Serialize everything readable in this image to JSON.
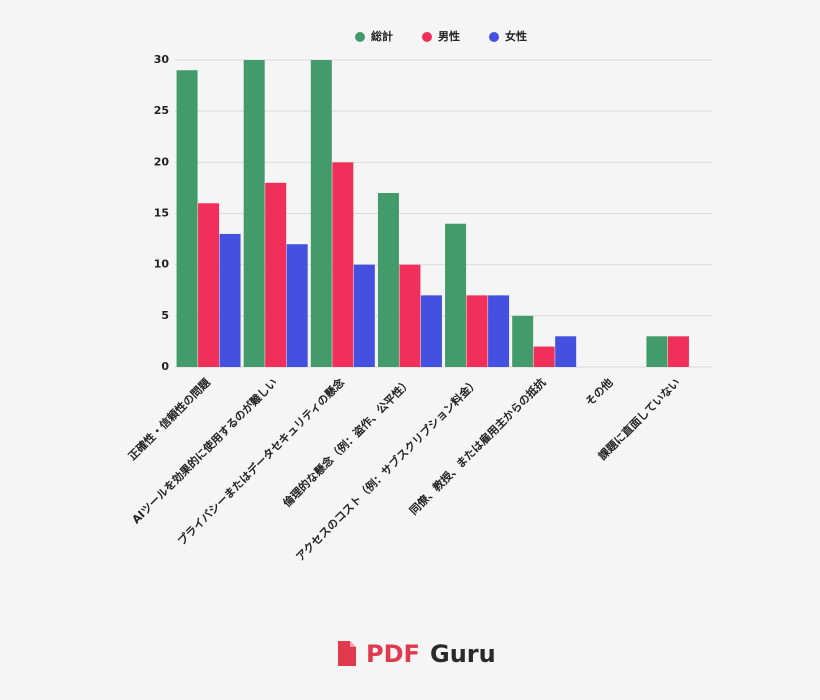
{
  "chart_data": {
    "type": "bar",
    "categories": [
      "正確性・信頼性の問題",
      "AIツールを効果的に使用するのが難しい",
      "プライバシーまたはデータセキュリティの懸念",
      "倫理的な懸念（例：盗作、公平性）",
      "アクセスのコスト（例：サブスクリプション料金）",
      "同僚、教授、または雇用主からの抵抗",
      "その他",
      "課題に直面していない"
    ],
    "series": [
      {
        "name": "総計",
        "color": "#439a6b",
        "values": [
          29,
          30,
          30,
          17,
          14,
          5,
          0,
          3
        ]
      },
      {
        "name": "男性",
        "color": "#f0305a",
        "values": [
          16,
          18,
          20,
          10,
          7,
          2,
          0,
          3
        ]
      },
      {
        "name": "女性",
        "color": "#4450e0",
        "values": [
          13,
          12,
          10,
          7,
          7,
          3,
          0,
          0
        ]
      }
    ],
    "ylim": [
      0,
      30
    ],
    "yticks": [
      0,
      5,
      10,
      15,
      20,
      25,
      30
    ],
    "grid": true,
    "legend": "top"
  },
  "logo": {
    "first": "PDF",
    "second": "Guru"
  }
}
